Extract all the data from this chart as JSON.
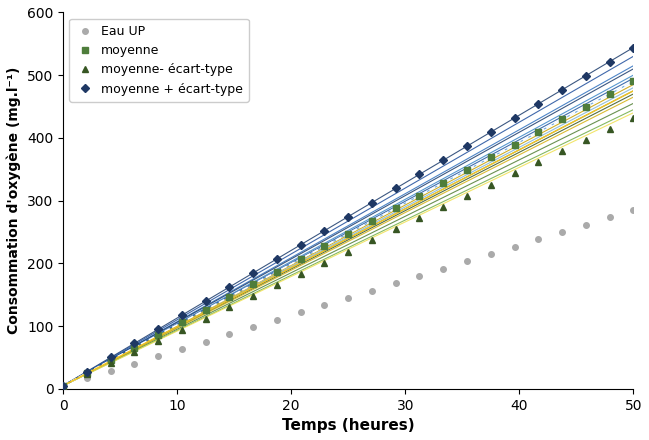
{
  "title": "",
  "xlabel": "Temps (heures)",
  "ylabel": "Consommation d'oxygène (mg.l⁻¹)",
  "xlim": [
    0,
    50
  ],
  "ylim": [
    0,
    600
  ],
  "xticks": [
    0,
    10,
    20,
    30,
    40,
    50
  ],
  "yticks": [
    0,
    100,
    200,
    300,
    400,
    500,
    600
  ],
  "x_end": 50,
  "eau_up_slope": 5.6,
  "eau_up_intercept": 5,
  "moyenne_slope": 9.7,
  "moyenne_intercept": 5,
  "moy_minus_std_slope": 8.55,
  "moy_minus_std_intercept": 5,
  "moy_plus_std_slope": 10.78,
  "moy_plus_std_intercept": 5,
  "individual_slopes": [
    10.78,
    10.5,
    10.2,
    9.9,
    9.7,
    9.5,
    9.3,
    9.0,
    8.8,
    9.6,
    9.2,
    8.7,
    10.1,
    9.8,
    9.4
  ],
  "individual_colors": [
    "#1a3a6b",
    "#1f4e9c",
    "#2e6fbd",
    "#3a86c8",
    "#5b9bd5",
    "#7fb3d4",
    "#375623",
    "#507e32",
    "#70ad47",
    "#c8a000",
    "#d4b010",
    "#f0e050",
    "#1a3a6b",
    "#2055a0",
    "#4a7cc0"
  ],
  "individual_intercept": 5,
  "white_slope": 9.7,
  "yellow_slope": 9.4,
  "legend_entries": [
    "Eau UP",
    "moyenne",
    "moyenne- écart-type",
    "moyenne + écart-type"
  ],
  "background_color": "#ffffff",
  "n_points": 200,
  "n_marker_points": 25
}
